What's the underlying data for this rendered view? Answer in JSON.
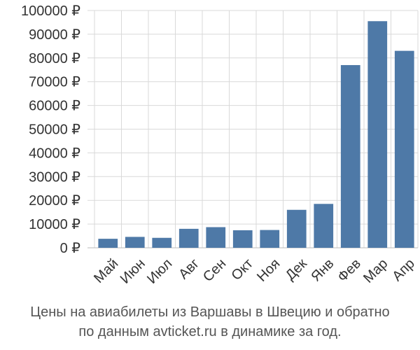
{
  "chart_data": {
    "type": "bar",
    "categories": [
      "Май",
      "Июн",
      "Июл",
      "Авг",
      "Сен",
      "Окт",
      "Ноя",
      "Дек",
      "Янв",
      "Фев",
      "Мар",
      "Апр"
    ],
    "values": [
      3800,
      4600,
      4200,
      8000,
      8700,
      7400,
      7500,
      16000,
      18500,
      77000,
      95500,
      83000
    ],
    "y_ticks": [
      "0 ₽",
      "10000 ₽",
      "20000 ₽",
      "30000 ₽",
      "40000 ₽",
      "50000 ₽",
      "60000 ₽",
      "70000 ₽",
      "80000 ₽",
      "90000 ₽",
      "100000 ₽"
    ],
    "ylim": [
      0,
      100000
    ],
    "grid": true,
    "bar_color": "#4e79a7",
    "grid_color": "#d9d9d9"
  },
  "caption": {
    "line1": "Цены на авиабилеты из Варшавы в Швецию и обратно",
    "line2": "по данным avticket.ru в динамике за год."
  }
}
